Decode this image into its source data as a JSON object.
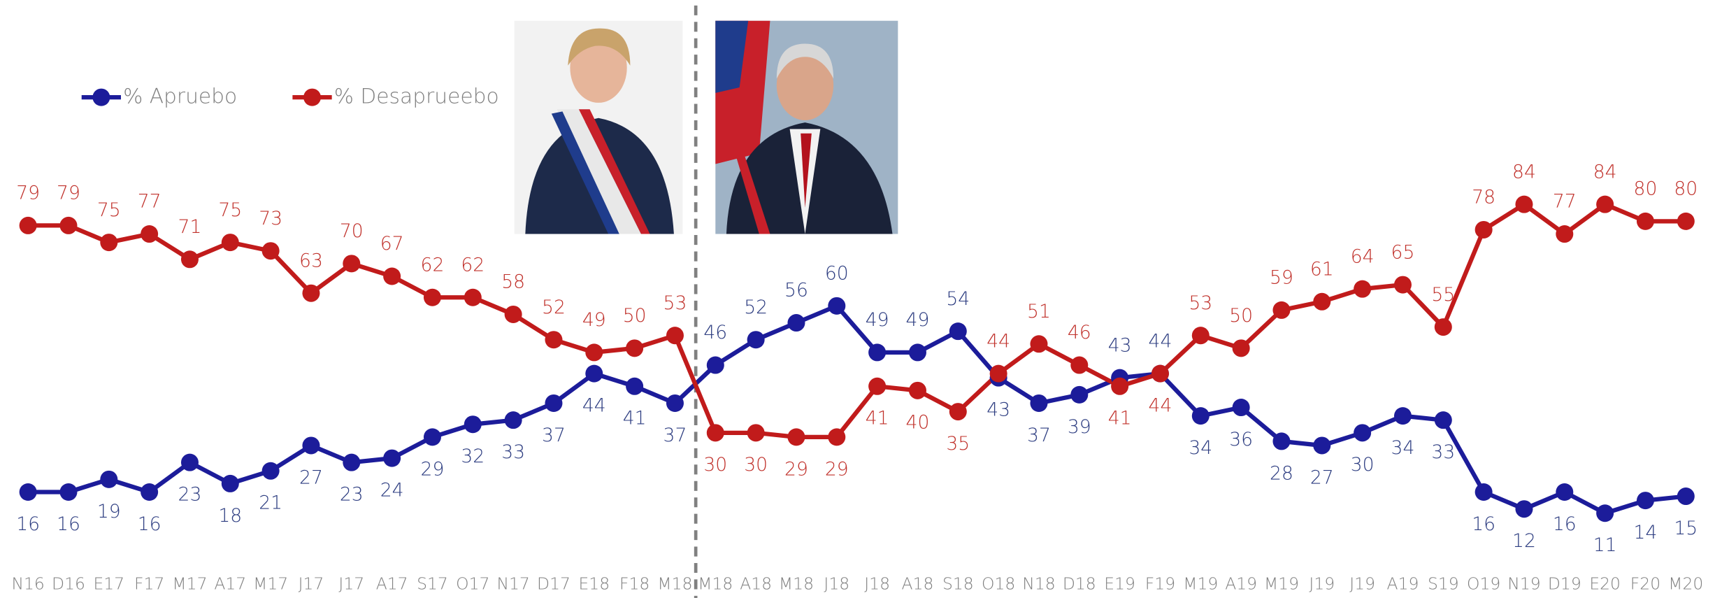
{
  "chart_data": {
    "type": "line",
    "categories": [
      "N16",
      "D16",
      "E17",
      "F17",
      "M17",
      "A17",
      "M17",
      "J17",
      "J17",
      "A17",
      "S17",
      "O17",
      "N17",
      "D17",
      "E18",
      "F18",
      "M18",
      "M18",
      "A18",
      "M18",
      "J18",
      "J18",
      "A18",
      "S18",
      "O18",
      "N18",
      "D18",
      "E19",
      "F19",
      "M19",
      "A19",
      "M19",
      "J19",
      "J19",
      "A19",
      "S19",
      "O19",
      "N19",
      "D19",
      "E20",
      "F20",
      "M20"
    ],
    "series": [
      {
        "name": "% Apruebo",
        "color": "#1c1c9a",
        "values": [
          16,
          16,
          19,
          16,
          23,
          18,
          21,
          27,
          23,
          24,
          29,
          32,
          33,
          37,
          44,
          41,
          37,
          46,
          52,
          56,
          60,
          49,
          49,
          54,
          43,
          37,
          39,
          43,
          44,
          34,
          36,
          28,
          27,
          30,
          34,
          33,
          16,
          12,
          16,
          11,
          14,
          15
        ]
      },
      {
        "name": "% Desaprueebo",
        "color": "#c11b1b",
        "values": [
          79,
          79,
          75,
          77,
          71,
          75,
          73,
          63,
          70,
          67,
          62,
          62,
          58,
          52,
          49,
          50,
          53,
          30,
          30,
          29,
          29,
          41,
          40,
          35,
          44,
          51,
          46,
          41,
          44,
          53,
          50,
          59,
          61,
          64,
          65,
          55,
          78,
          84,
          77,
          84,
          80,
          80
        ]
      }
    ],
    "ylim": [
      0,
      100
    ]
  }
}
